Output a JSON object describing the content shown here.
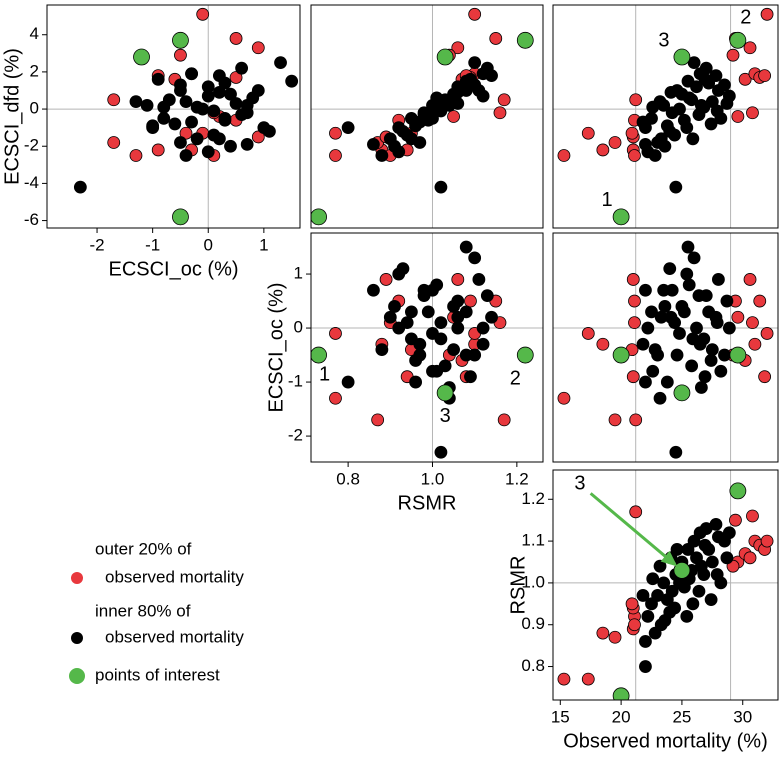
{
  "chart_data": {
    "type": "scatter-matrix",
    "groups": [
      {
        "name": [
          "outer 20% of",
          "observed mortality"
        ],
        "color": "#e8383d",
        "mortality": [
          15.3,
          17.3,
          18.5,
          19.5,
          21.0,
          21.1,
          21.0,
          21.2,
          20.9,
          21.1,
          29.4,
          29.6,
          30.2,
          30.6,
          31.0,
          31.4,
          31.8,
          32.0,
          29.2,
          30.8
        ],
        "rsmr": [
          0.77,
          0.77,
          0.88,
          0.87,
          0.89,
          0.92,
          0.94,
          1.17,
          0.95,
          0.9,
          1.15,
          1.05,
          1.07,
          1.06,
          1.1,
          1.09,
          1.08,
          1.1,
          1.04,
          1.16
        ],
        "oc": [
          -1.3,
          -0.1,
          -0.3,
          -1.7,
          0.9,
          0.5,
          -0.9,
          -1.7,
          -0.4,
          0.1,
          0.5,
          0.2,
          -0.6,
          0.9,
          -0.3,
          0.5,
          -0.9,
          -0.1,
          -0.5,
          0.1
        ],
        "dfd": [
          -2.5,
          -1.3,
          -2.2,
          -1.8,
          -1.5,
          -0.6,
          -2.2,
          0.5,
          -1.3,
          -2.5,
          3.8,
          -0.4,
          1.6,
          3.3,
          1.9,
          1.7,
          1.8,
          5.1,
          2.9,
          -0.2
        ]
      },
      {
        "name": [
          "inner 80% of",
          "observed mortality"
        ],
        "color": "#000000",
        "mortality": [
          22.0,
          22.5,
          23.0,
          23.5,
          24.0,
          24.5,
          25.0,
          25.5,
          26.0,
          26.5,
          27.0,
          27.5,
          28.0,
          28.5,
          22.2,
          22.8,
          23.3,
          23.8,
          24.2,
          24.8,
          25.2,
          25.8,
          26.2,
          26.8,
          27.2,
          27.8,
          28.2,
          28.7,
          22.0,
          21.8,
          23.2,
          24.4,
          25.4,
          26.4,
          27.4,
          24.6,
          25.6,
          26.6,
          22.6,
          23.6,
          27.9,
          25.9,
          24.1,
          26.9,
          28.9
        ],
        "rsmr": [
          0.8,
          0.95,
          0.97,
          1.0,
          0.93,
          1.02,
          1.05,
          1.08,
          1.1,
          1.12,
          1.13,
          1.05,
          1.11,
          1.1,
          0.92,
          0.88,
          0.9,
          0.96,
          0.98,
          1.0,
          0.99,
          1.03,
          1.06,
          1.02,
          1.08,
          1.14,
          1.0,
          1.06,
          0.86,
          0.97,
          1.04,
          0.94,
          0.92,
          0.98,
          0.96,
          1.08,
          1.01,
          1.04,
          1.01,
          0.91,
          1.02,
          0.95,
          1.06,
          1.09,
          1.12
        ],
        "oc": [
          -1.0,
          0.3,
          -0.5,
          0.7,
          1.1,
          -2.3,
          0.4,
          1.5,
          1.3,
          -0.3,
          0.6,
          -0.4,
          0.9,
          -0.5,
          0.0,
          -0.4,
          0.2,
          -1.0,
          0.7,
          -0.1,
          0.3,
          -0.7,
          0.0,
          -0.2,
          0.3,
          0.2,
          -0.8,
          0.5,
          0.7,
          -0.3,
          -1.3,
          0.1,
          1.0,
          0.6,
          -0.6,
          -0.5,
          0.8,
          -1.1,
          -0.8,
          0.4,
          0.1,
          -0.2,
          0.2,
          -0.9,
          0.0
        ],
        "dfd": [
          -1.0,
          -0.5,
          -1.8,
          0.2,
          -1.2,
          -4.2,
          0.8,
          1.5,
          2.5,
          1.9,
          2.2,
          0.4,
          1.0,
          1.3,
          -2.3,
          -2.5,
          -1.6,
          -0.9,
          -0.2,
          0.0,
          -0.6,
          0.5,
          1.2,
          0.1,
          1.4,
          1.8,
          -0.5,
          0.3,
          -1.9,
          -0.7,
          0.4,
          -1.4,
          -1.0,
          -0.3,
          -0.8,
          1.0,
          0.6,
          0.2,
          0.1,
          -2.0,
          -0.1,
          -1.6,
          0.9,
          1.6,
          0.7
        ]
      },
      {
        "name": [
          "points of interest"
        ],
        "color": "#55b84a",
        "labels": [
          "1",
          "2",
          "3"
        ],
        "mortality": [
          20.0,
          29.6,
          25.0
        ],
        "rsmr": [
          0.73,
          1.22,
          1.03
        ],
        "oc": [
          -0.5,
          -0.5,
          -1.2
        ],
        "dfd": [
          -5.8,
          3.7,
          2.8
        ]
      }
    ],
    "reference_lines": {
      "oc": [
        0
      ],
      "dfd": [
        0
      ],
      "rsmr": [
        1
      ],
      "mortality": [
        21.2,
        29
      ]
    },
    "panels": [
      {
        "x": "oc",
        "y": "dfd",
        "xlim": [
          -2.9,
          1.65
        ],
        "ylim": [
          -6.4,
          5.6
        ],
        "xticks": [
          -2,
          -1,
          0,
          1
        ],
        "yticks": [
          -6,
          -4,
          -2,
          0,
          2,
          4
        ],
        "xlabel": "ECSCI_oc (%)",
        "ylabel": "ECSCI_dfd (%)"
      },
      {
        "x": "rsmr",
        "y": "dfd",
        "xlim": [
          0.712,
          1.262
        ],
        "ylim": [
          -6.4,
          5.6
        ]
      },
      {
        "x": "mortality",
        "y": "dfd",
        "xlim": [
          14.4,
          32.9
        ],
        "ylim": [
          -6.4,
          5.6
        ],
        "annotations": [
          "1",
          "2",
          "3"
        ]
      },
      {
        "x": "rsmr",
        "y": "oc",
        "xlim": [
          0.712,
          1.262
        ],
        "ylim": [
          -2.48,
          1.76
        ],
        "xticks": [
          0.8,
          {
            "value": 1,
            "label": "1.0"
          },
          1.2
        ],
        "yticks": [
          -2,
          -1,
          0,
          1
        ],
        "xlabel": "RSMR",
        "ylabel": "ECSCI_oc (%)",
        "annotations": [
          "1",
          "2",
          "3"
        ]
      },
      {
        "x": "mortality",
        "y": "oc",
        "xlim": [
          14.4,
          32.9
        ],
        "ylim": [
          -2.48,
          1.76
        ]
      },
      {
        "x": "mortality",
        "y": "rsmr",
        "xlim": [
          14.4,
          32.9
        ],
        "ylim": [
          0.72,
          1.27
        ],
        "xticks": [
          15,
          20,
          25,
          30
        ],
        "yticks": [
          0.8,
          0.9,
          {
            "value": 1,
            "label": "1.0"
          },
          1.1,
          1.2
        ],
        "xlabel": "Observed mortality (%)",
        "ylabel": "RSMR",
        "annotations": [
          "3"
        ]
      }
    ]
  }
}
